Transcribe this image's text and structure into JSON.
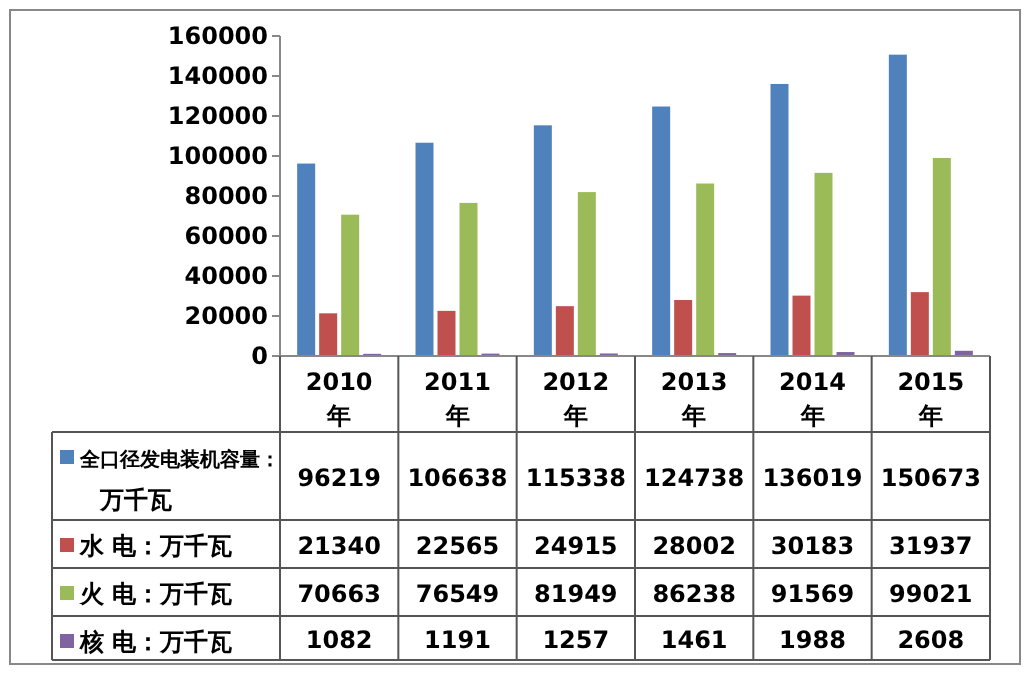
{
  "chart_data": {
    "type": "bar",
    "categories": [
      "2010年",
      "2011年",
      "2012年",
      "2013年",
      "2014年",
      "2015年"
    ],
    "series": [
      {
        "name": "全口径发电装机容量：万千瓦",
        "color": "#4f81bd",
        "values": [
          96219,
          106638,
          115338,
          124738,
          136019,
          150673
        ]
      },
      {
        "name": "水 电：万千瓦",
        "color": "#c0504d",
        "values": [
          21340,
          22565,
          24915,
          28002,
          30183,
          31937
        ]
      },
      {
        "name": "火 电：万千瓦",
        "color": "#9bbb59",
        "values": [
          70663,
          76549,
          81949,
          86238,
          91569,
          99021
        ]
      },
      {
        "name": "核 电：万千瓦",
        "color": "#8064a2",
        "values": [
          1082,
          1191,
          1257,
          1461,
          1988,
          2608
        ]
      }
    ],
    "ylim": [
      0,
      160000
    ],
    "yticks": [
      0,
      20000,
      40000,
      60000,
      80000,
      100000,
      120000,
      140000,
      160000
    ],
    "data_labels": true,
    "legend": "bottom"
  }
}
